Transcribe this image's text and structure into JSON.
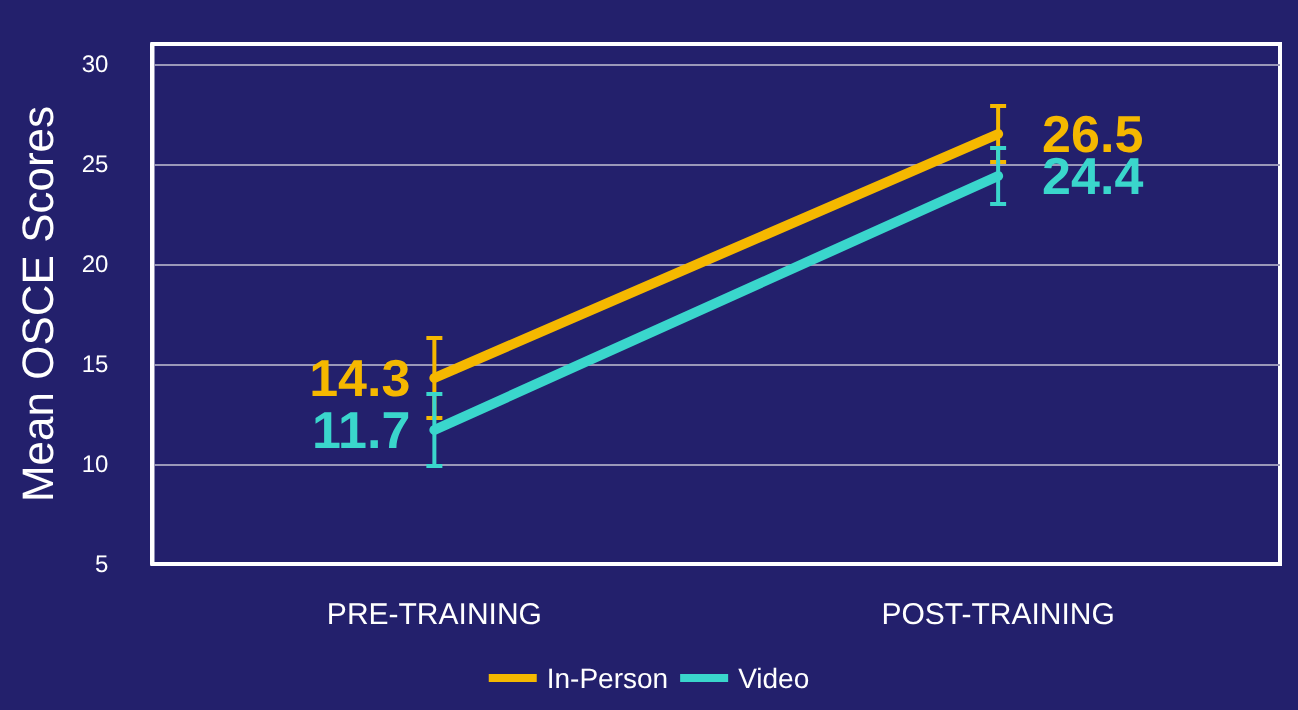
{
  "chart_data": {
    "type": "line",
    "ylabel": "Mean OSCE Scores",
    "categories": [
      "PRE-TRAINING",
      "POST-TRAINING"
    ],
    "series": [
      {
        "name": "In-Person",
        "color": "#f5b800",
        "values": [
          14.3,
          26.5
        ],
        "errors": [
          2.0,
          1.4
        ]
      },
      {
        "name": "Video",
        "color": "#3ad6cc",
        "values": [
          11.7,
          24.4
        ],
        "errors": [
          1.8,
          1.4
        ]
      }
    ],
    "ylim": [
      5,
      31
    ],
    "yticks": [
      5,
      10,
      15,
      20,
      25,
      30
    ],
    "grid": "y",
    "legend": "bottom",
    "data_labels": true,
    "marker": "none",
    "line_style": "solid"
  }
}
